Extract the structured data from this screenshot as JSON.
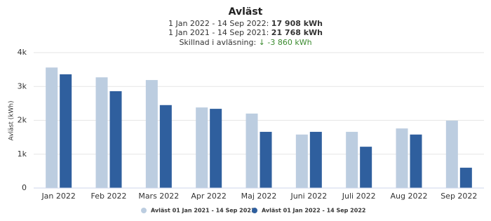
{
  "chart_data": {
    "type": "bar",
    "title": "Avläst",
    "summary": [
      {
        "label": "1 Jan 2022 - 14 Sep 2022:",
        "value": "17 908 kWh"
      },
      {
        "label": "1 Jan 2021 - 14 Sep 2021:",
        "value": "21 768 kWh"
      }
    ],
    "difference": {
      "label": "Skillnad i avläsning:",
      "value": "↓ -3 860 kWh",
      "color": "#3a8a2e"
    },
    "y_label": "Avläst (kWh)",
    "categories": [
      "Jan 2022",
      "Feb 2022",
      "Mars 2022",
      "Apr 2022",
      "Maj 2022",
      "Juni 2022",
      "Juli 2022",
      "Aug 2022",
      "Sep 2022"
    ],
    "series": [
      {
        "name": "Avläst 01 Jan 2021 - 14 Sep 2021",
        "color": "#bccde0",
        "values": [
          3560,
          3270,
          3190,
          2380,
          2200,
          1580,
          1660,
          1760,
          1990
        ]
      },
      {
        "name": "Avläst 01 Jan 2022 - 14 Sep 2022",
        "color": "#2f5f9e",
        "values": [
          3360,
          2860,
          2450,
          2340,
          1660,
          1660,
          1220,
          1580,
          600
        ]
      }
    ],
    "ylim": [
      0,
      4000
    ],
    "yticks": [
      0,
      {
        "value": 1000,
        "label": "1k"
      },
      {
        "value": 2000,
        "label": "2k"
      },
      {
        "value": 3000,
        "label": "3k"
      },
      {
        "value": 4000,
        "label": "4k"
      }
    ],
    "grid": true
  }
}
